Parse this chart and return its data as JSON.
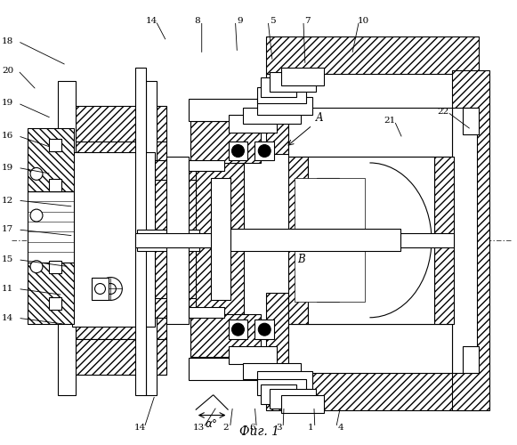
{
  "title": "Фиг. 1",
  "bg": "#ffffff",
  "fig_w": 5.81,
  "fig_h": 5.0,
  "dpi": 100,
  "lw_main": 0.8,
  "lw_thin": 0.5,
  "lw_thick": 1.0,
  "hatch": "////",
  "hatch2": "\\\\\\\\",
  "label_fs": 7.5,
  "title_fs": 10
}
